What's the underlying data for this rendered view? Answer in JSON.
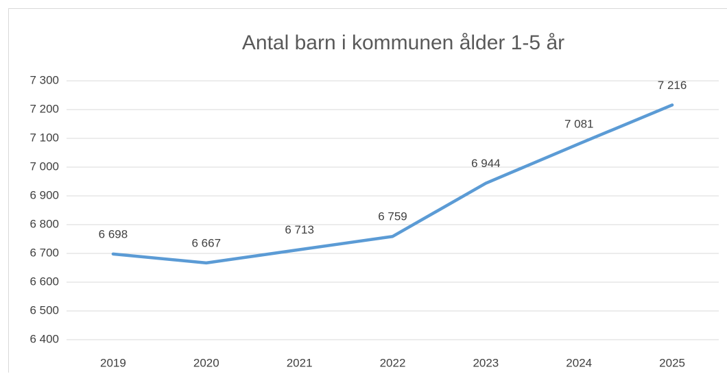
{
  "chart_data": {
    "type": "line",
    "title": "Antal barn i kommunen ålder 1-5 år",
    "categories": [
      "2019",
      "2020",
      "2021",
      "2022",
      "2023",
      "2024",
      "2025"
    ],
    "series": [
      {
        "name": "Antal barn",
        "color": "#5b9bd5",
        "values": [
          6698,
          6667,
          6713,
          6759,
          6944,
          7081,
          7216
        ],
        "value_labels": [
          "6 698",
          "6 667",
          "6 713",
          "6 759",
          "6 944",
          "7 081",
          "7 216"
        ]
      }
    ],
    "ylim": [
      6400,
      7300
    ],
    "yticks": [
      {
        "value": 6400,
        "label": "6 400"
      },
      {
        "value": 6500,
        "label": "6 500"
      },
      {
        "value": 6600,
        "label": "6 600"
      },
      {
        "value": 6700,
        "label": "6 700"
      },
      {
        "value": 6800,
        "label": "6 800"
      },
      {
        "value": 6900,
        "label": "6 900"
      },
      {
        "value": 7000,
        "label": "7 000"
      },
      {
        "value": 7100,
        "label": "7 100"
      },
      {
        "value": 7200,
        "label": "7 200"
      },
      {
        "value": 7300,
        "label": "7 300"
      }
    ],
    "grid": true
  }
}
